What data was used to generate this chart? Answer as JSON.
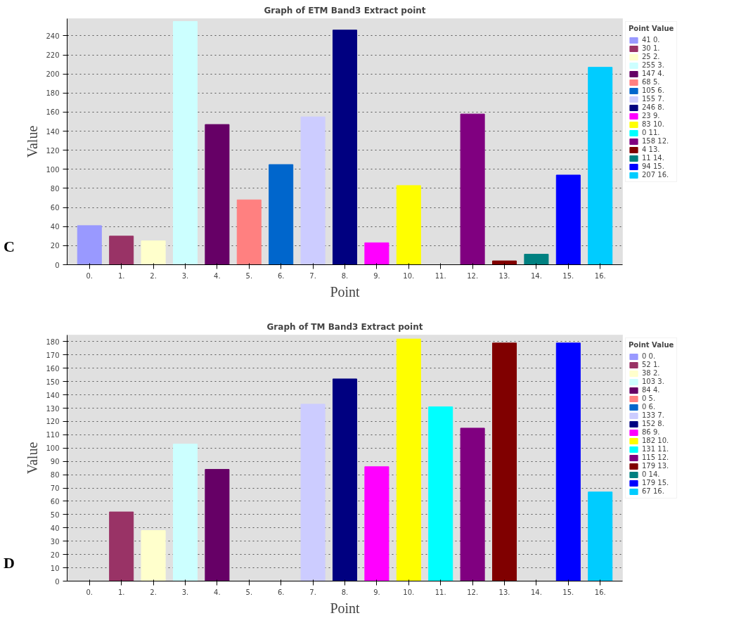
{
  "chart_data": [
    {
      "type": "bar",
      "title": "Graph of ETM Band3 Extract point",
      "xlabel": "Point",
      "ylabel": "Value",
      "legend_title": "Point Value",
      "annotations": [
        "C"
      ],
      "categories": [
        "0.",
        "1.",
        "2.",
        "3.",
        "4.",
        "5.",
        "6.",
        "7.",
        "8.",
        "9.",
        "10.",
        "11.",
        "12.",
        "13.",
        "14.",
        "15.",
        "16."
      ],
      "series": [
        {
          "name": "41 0.",
          "color": "#9999ff",
          "values": [
            41,
            null,
            null,
            null,
            null,
            null,
            null,
            null,
            null,
            null,
            null,
            null,
            null,
            null,
            null,
            null,
            null
          ]
        },
        {
          "name": "30 1.",
          "color": "#993366",
          "values": [
            null,
            30,
            null,
            null,
            null,
            null,
            null,
            null,
            null,
            null,
            null,
            null,
            null,
            null,
            null,
            null,
            null
          ]
        },
        {
          "name": "25 2.",
          "color": "#ffffcc",
          "values": [
            null,
            null,
            25,
            null,
            null,
            null,
            null,
            null,
            null,
            null,
            null,
            null,
            null,
            null,
            null,
            null,
            null
          ]
        },
        {
          "name": "255 3.",
          "color": "#ccffff",
          "values": [
            null,
            null,
            null,
            255,
            null,
            null,
            null,
            null,
            null,
            null,
            null,
            null,
            null,
            null,
            null,
            null,
            null
          ]
        },
        {
          "name": "147 4.",
          "color": "#660066",
          "values": [
            null,
            null,
            null,
            null,
            147,
            null,
            null,
            null,
            null,
            null,
            null,
            null,
            null,
            null,
            null,
            null,
            null
          ]
        },
        {
          "name": "68 5.",
          "color": "#ff8080",
          "values": [
            null,
            null,
            null,
            null,
            null,
            68,
            null,
            null,
            null,
            null,
            null,
            null,
            null,
            null,
            null,
            null,
            null
          ]
        },
        {
          "name": "105 6.",
          "color": "#0066cc",
          "values": [
            null,
            null,
            null,
            null,
            null,
            null,
            105,
            null,
            null,
            null,
            null,
            null,
            null,
            null,
            null,
            null,
            null
          ]
        },
        {
          "name": "155 7.",
          "color": "#ccccff",
          "values": [
            null,
            null,
            null,
            null,
            null,
            null,
            null,
            155,
            null,
            null,
            null,
            null,
            null,
            null,
            null,
            null,
            null
          ]
        },
        {
          "name": "246 8.",
          "color": "#000080",
          "values": [
            null,
            null,
            null,
            null,
            null,
            null,
            null,
            null,
            246,
            null,
            null,
            null,
            null,
            null,
            null,
            null,
            null
          ]
        },
        {
          "name": "23 9.",
          "color": "#ff00ff",
          "values": [
            null,
            null,
            null,
            null,
            null,
            null,
            null,
            null,
            null,
            23,
            null,
            null,
            null,
            null,
            null,
            null,
            null
          ]
        },
        {
          "name": "83 10.",
          "color": "#ffff00",
          "values": [
            null,
            null,
            null,
            null,
            null,
            null,
            null,
            null,
            null,
            null,
            83,
            null,
            null,
            null,
            null,
            null,
            null
          ]
        },
        {
          "name": "0 11.",
          "color": "#00ffff",
          "values": [
            null,
            null,
            null,
            null,
            null,
            null,
            null,
            null,
            null,
            null,
            null,
            0,
            null,
            null,
            null,
            null,
            null
          ]
        },
        {
          "name": "158 12.",
          "color": "#800080",
          "values": [
            null,
            null,
            null,
            null,
            null,
            null,
            null,
            null,
            null,
            null,
            null,
            null,
            158,
            null,
            null,
            null,
            null
          ]
        },
        {
          "name": "4 13.",
          "color": "#800000",
          "values": [
            null,
            null,
            null,
            null,
            null,
            null,
            null,
            null,
            null,
            null,
            null,
            null,
            null,
            4,
            null,
            null,
            null
          ]
        },
        {
          "name": "11 14.",
          "color": "#008080",
          "values": [
            null,
            null,
            null,
            null,
            null,
            null,
            null,
            null,
            null,
            null,
            null,
            null,
            null,
            null,
            11,
            null,
            null
          ]
        },
        {
          "name": "94 15.",
          "color": "#0000ff",
          "values": [
            null,
            null,
            null,
            null,
            null,
            null,
            null,
            null,
            null,
            null,
            null,
            null,
            null,
            null,
            null,
            94,
            null
          ]
        },
        {
          "name": "207 16.",
          "color": "#00ccff",
          "values": [
            null,
            null,
            null,
            null,
            null,
            null,
            null,
            null,
            null,
            null,
            null,
            null,
            null,
            null,
            null,
            null,
            207
          ]
        }
      ],
      "ylim": [
        0,
        258
      ],
      "yticks": [
        0,
        20,
        40,
        60,
        80,
        100,
        120,
        140,
        160,
        180,
        200,
        220,
        240
      ],
      "grid": "y",
      "legend": "right"
    },
    {
      "type": "bar",
      "title": "Graph of TM Band3 Extract point",
      "xlabel": "Point",
      "ylabel": "Value",
      "legend_title": "Point Value",
      "annotations": [
        "D"
      ],
      "categories": [
        "0.",
        "1.",
        "2.",
        "3.",
        "4.",
        "5.",
        "6.",
        "7.",
        "8.",
        "9.",
        "10.",
        "11.",
        "12.",
        "13.",
        "14.",
        "15.",
        "16."
      ],
      "series": [
        {
          "name": "0 0.",
          "color": "#9999ff",
          "values": [
            0,
            null,
            null,
            null,
            null,
            null,
            null,
            null,
            null,
            null,
            null,
            null,
            null,
            null,
            null,
            null,
            null
          ]
        },
        {
          "name": "52 1.",
          "color": "#993366",
          "values": [
            null,
            52,
            null,
            null,
            null,
            null,
            null,
            null,
            null,
            null,
            null,
            null,
            null,
            null,
            null,
            null,
            null
          ]
        },
        {
          "name": "38 2.",
          "color": "#ffffcc",
          "values": [
            null,
            null,
            38,
            null,
            null,
            null,
            null,
            null,
            null,
            null,
            null,
            null,
            null,
            null,
            null,
            null,
            null
          ]
        },
        {
          "name": "103 3.",
          "color": "#ccffff",
          "values": [
            null,
            null,
            null,
            103,
            null,
            null,
            null,
            null,
            null,
            null,
            null,
            null,
            null,
            null,
            null,
            null,
            null
          ]
        },
        {
          "name": "84 4.",
          "color": "#660066",
          "values": [
            null,
            null,
            null,
            null,
            84,
            null,
            null,
            null,
            null,
            null,
            null,
            null,
            null,
            null,
            null,
            null,
            null
          ]
        },
        {
          "name": "0 5.",
          "color": "#ff8080",
          "values": [
            null,
            null,
            null,
            null,
            null,
            0,
            null,
            null,
            null,
            null,
            null,
            null,
            null,
            null,
            null,
            null,
            null
          ]
        },
        {
          "name": "0 6.",
          "color": "#0066cc",
          "values": [
            null,
            null,
            null,
            null,
            null,
            null,
            0,
            null,
            null,
            null,
            null,
            null,
            null,
            null,
            null,
            null,
            null
          ]
        },
        {
          "name": "133 7.",
          "color": "#ccccff",
          "values": [
            null,
            null,
            null,
            null,
            null,
            null,
            null,
            133,
            null,
            null,
            null,
            null,
            null,
            null,
            null,
            null,
            null
          ]
        },
        {
          "name": "152 8.",
          "color": "#000080",
          "values": [
            null,
            null,
            null,
            null,
            null,
            null,
            null,
            null,
            152,
            null,
            null,
            null,
            null,
            null,
            null,
            null,
            null
          ]
        },
        {
          "name": "86 9.",
          "color": "#ff00ff",
          "values": [
            null,
            null,
            null,
            null,
            null,
            null,
            null,
            null,
            null,
            86,
            null,
            null,
            null,
            null,
            null,
            null,
            null
          ]
        },
        {
          "name": "182 10.",
          "color": "#ffff00",
          "values": [
            null,
            null,
            null,
            null,
            null,
            null,
            null,
            null,
            null,
            null,
            182,
            null,
            null,
            null,
            null,
            null,
            null
          ]
        },
        {
          "name": "131 11.",
          "color": "#00ffff",
          "values": [
            null,
            null,
            null,
            null,
            null,
            null,
            null,
            null,
            null,
            null,
            null,
            131,
            null,
            null,
            null,
            null,
            null
          ]
        },
        {
          "name": "115 12.",
          "color": "#800080",
          "values": [
            null,
            null,
            null,
            null,
            null,
            null,
            null,
            null,
            null,
            null,
            null,
            null,
            115,
            null,
            null,
            null,
            null
          ]
        },
        {
          "name": "179 13.",
          "color": "#800000",
          "values": [
            null,
            null,
            null,
            null,
            null,
            null,
            null,
            null,
            null,
            null,
            null,
            null,
            null,
            179,
            null,
            null,
            null
          ]
        },
        {
          "name": "0 14.",
          "color": "#008080",
          "values": [
            null,
            null,
            null,
            null,
            null,
            null,
            null,
            null,
            null,
            null,
            null,
            null,
            null,
            null,
            0,
            null,
            null
          ]
        },
        {
          "name": "179 15.",
          "color": "#0000ff",
          "values": [
            null,
            null,
            null,
            null,
            null,
            null,
            null,
            null,
            null,
            null,
            null,
            null,
            null,
            null,
            null,
            179,
            null
          ]
        },
        {
          "name": "67 16.",
          "color": "#00ccff",
          "values": [
            null,
            null,
            null,
            null,
            null,
            null,
            null,
            null,
            null,
            null,
            null,
            null,
            null,
            null,
            null,
            null,
            67
          ]
        }
      ],
      "ylim": [
        0,
        185
      ],
      "yticks": [
        0,
        10,
        20,
        30,
        40,
        50,
        60,
        70,
        80,
        90,
        100,
        110,
        120,
        130,
        140,
        150,
        160,
        170,
        180
      ],
      "grid": "y",
      "legend": "right"
    }
  ]
}
